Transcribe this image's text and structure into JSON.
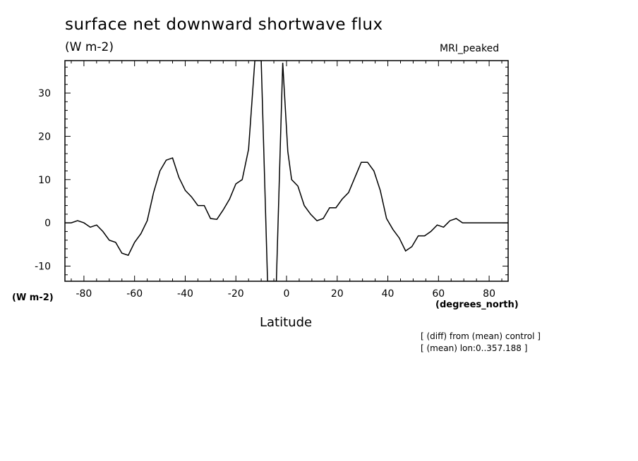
{
  "chart_data": {
    "type": "line",
    "title": "surface net downward shortwave flux",
    "units": "(W m-2)",
    "model_label": "MRI_peaked",
    "ylabel": "(W m-2)",
    "xunit_label": "(degrees_north)",
    "xlabel": "Latitude",
    "notes": [
      "[ (diff) from (mean) control ]",
      "[ (mean) lon:0..357.188 ]"
    ],
    "xlim": [
      -87.5,
      87.5
    ],
    "ylim": [
      -13.5,
      37.5
    ],
    "xticks": [
      -80,
      -60,
      -40,
      -20,
      0,
      20,
      40,
      60,
      80
    ],
    "yticks": [
      -10,
      0,
      10,
      20,
      30
    ],
    "grid": false,
    "series": [
      {
        "x": [
          -87.5,
          -85,
          -82.5,
          -80,
          -77.5,
          -75,
          -72.5,
          -70,
          -67.5,
          -65,
          -62.5,
          -60,
          -57.5,
          -55,
          -52.5,
          -50,
          -47.5,
          -45,
          -42.5,
          -40,
          -37.5,
          -35,
          -32.5,
          -30,
          -27.5,
          -25,
          -22.5,
          -20,
          -17.5,
          -15,
          -12.5,
          -10,
          -7.5,
          -5,
          -4,
          -1.5,
          0.5,
          2,
          4.5,
          7,
          9.5,
          12,
          14.5,
          17,
          19.5,
          22,
          24.5,
          27,
          29.5,
          32,
          34.5,
          37,
          39.5,
          42,
          44.5,
          47,
          49.5,
          52,
          54.5,
          57,
          59.5,
          62,
          64.5,
          67,
          69.5,
          72,
          74.5,
          77,
          79.5,
          82,
          84.5,
          87.5
        ],
        "y": [
          0,
          0,
          0.5,
          0,
          -1,
          -0.5,
          -2,
          -4,
          -4.5,
          -7,
          -7.5,
          -4.5,
          -2.5,
          0.5,
          7,
          12,
          14.5,
          15,
          10.5,
          7.5,
          6,
          4,
          4,
          1,
          0.8,
          3,
          5.5,
          9,
          10,
          17,
          37.5,
          37.5,
          -13.5,
          -13.5,
          -13.5,
          37,
          16.5,
          10,
          8.5,
          4,
          2,
          0.5,
          1,
          3.5,
          3.5,
          5.5,
          7,
          10.5,
          14,
          14,
          12,
          7.5,
          1,
          -1.5,
          -3.5,
          -6.5,
          -5.5,
          -3,
          -3,
          -2,
          -0.5,
          -1,
          0.5,
          1,
          0,
          0,
          0,
          0,
          0,
          0,
          0,
          0
        ]
      }
    ]
  }
}
